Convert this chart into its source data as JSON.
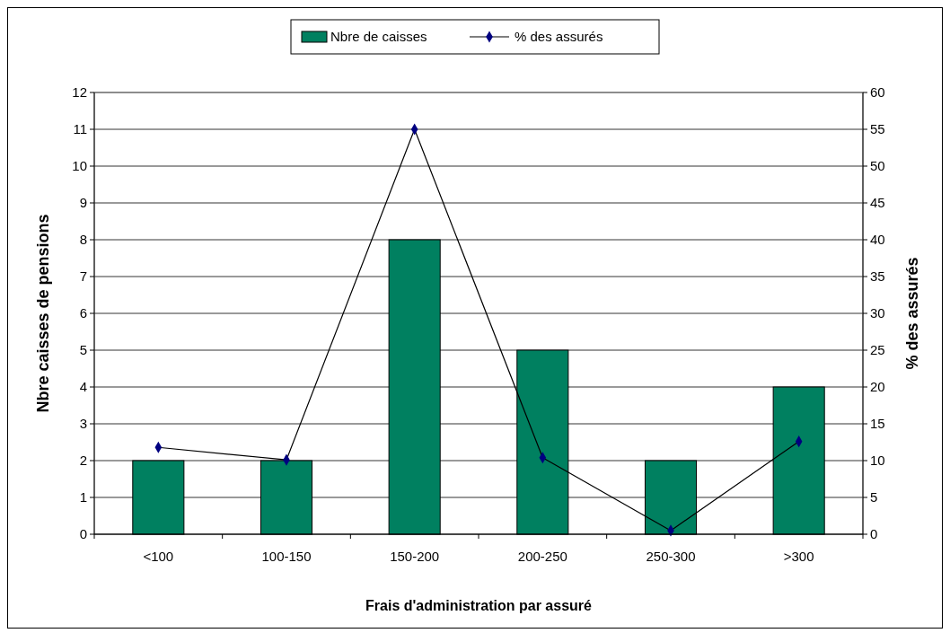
{
  "chart_data": {
    "type": "bar",
    "xlabel": "Frais d'administration par assuré",
    "ylabel": "Nbre caisses de pensions",
    "y2label": "% des assurés",
    "categories": [
      "<100",
      "100-150",
      "150-200",
      "200-250",
      "250-300",
      ">300"
    ],
    "series": [
      {
        "name": "Nbre de caisses",
        "color": "#008060",
        "values": [
          2,
          2,
          8,
          5,
          2,
          4
        ]
      },
      {
        "name": "% des assurés",
        "type": "line",
        "axis": "y2",
        "color": "#000080",
        "values": [
          11.8,
          10.1,
          55,
          10.4,
          0.5,
          12.6
        ]
      }
    ],
    "ylim": [
      0,
      12
    ],
    "yticks": [
      0,
      1,
      2,
      3,
      4,
      5,
      6,
      7,
      8,
      9,
      10,
      11,
      12
    ],
    "y2lim": [
      0,
      60
    ],
    "y2ticks": [
      0,
      5,
      10,
      15,
      20,
      25,
      30,
      35,
      40,
      45,
      50,
      55,
      60
    ],
    "grid": "y",
    "legend": "top",
    "marker": "diamond"
  }
}
